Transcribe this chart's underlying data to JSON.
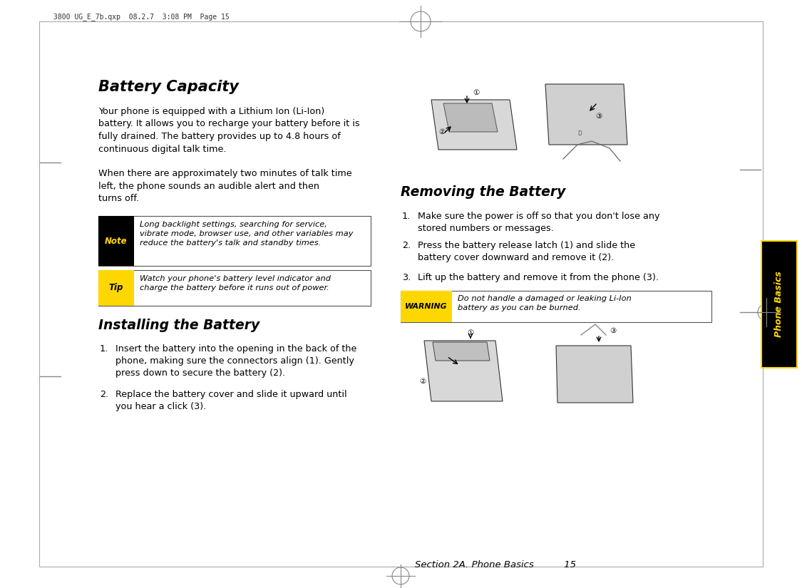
{
  "bg_color": "#ffffff",
  "page_header": "3800 UG_E_7b.qxp  08.2.7  3:08 PM  Page 15",
  "section_title": "Battery Capacity",
  "para1": "Your phone is equipped with a Lithium Ion (Li-Ion)\nbattery. It allows you to recharge your battery before it is\nfully drained. The battery provides up to 4.8 hours of\ncontinuous digital talk time.",
  "para2": "When there are approximately two minutes of talk time\nleft, the phone sounds an audible alert and then\nturns off.",
  "note_label": "Note",
  "note_text": "Long backlight settings, searching for service,\nvibrate mode, browser use, and other variables may\nreduce the battery's talk and standby times.",
  "tip_label": "Tip",
  "tip_text": "Watch your phone's battery level indicator and\ncharge the battery before it runs out of power.",
  "install_title": "Installing the Battery",
  "install_1": "Insert the battery into the opening in the back of the\nphone, making sure the connectors align (1). Gently\npress down to secure the battery (2).",
  "install_2": "Replace the battery cover and slide it upward until\nyou hear a click (3).",
  "remove_title": "Removing the Battery",
  "remove_1": "Make sure the power is off so that you don't lose any\nstored numbers or messages.",
  "remove_2": "Press the battery release latch (1) and slide the\nbattery cover downward and remove it (2).",
  "remove_3": "Lift up the battery and remove it from the phone (3).",
  "warning_label": "WARNING",
  "warning_text": "Do not handle a damaged or leaking Li-Ion\nbattery as you can be burned.",
  "footer": "Section 2A. Phone Basics          15",
  "tab_text": "Phone Basics",
  "yellow": "#FFD700",
  "black": "#000000",
  "white": "#ffffff"
}
